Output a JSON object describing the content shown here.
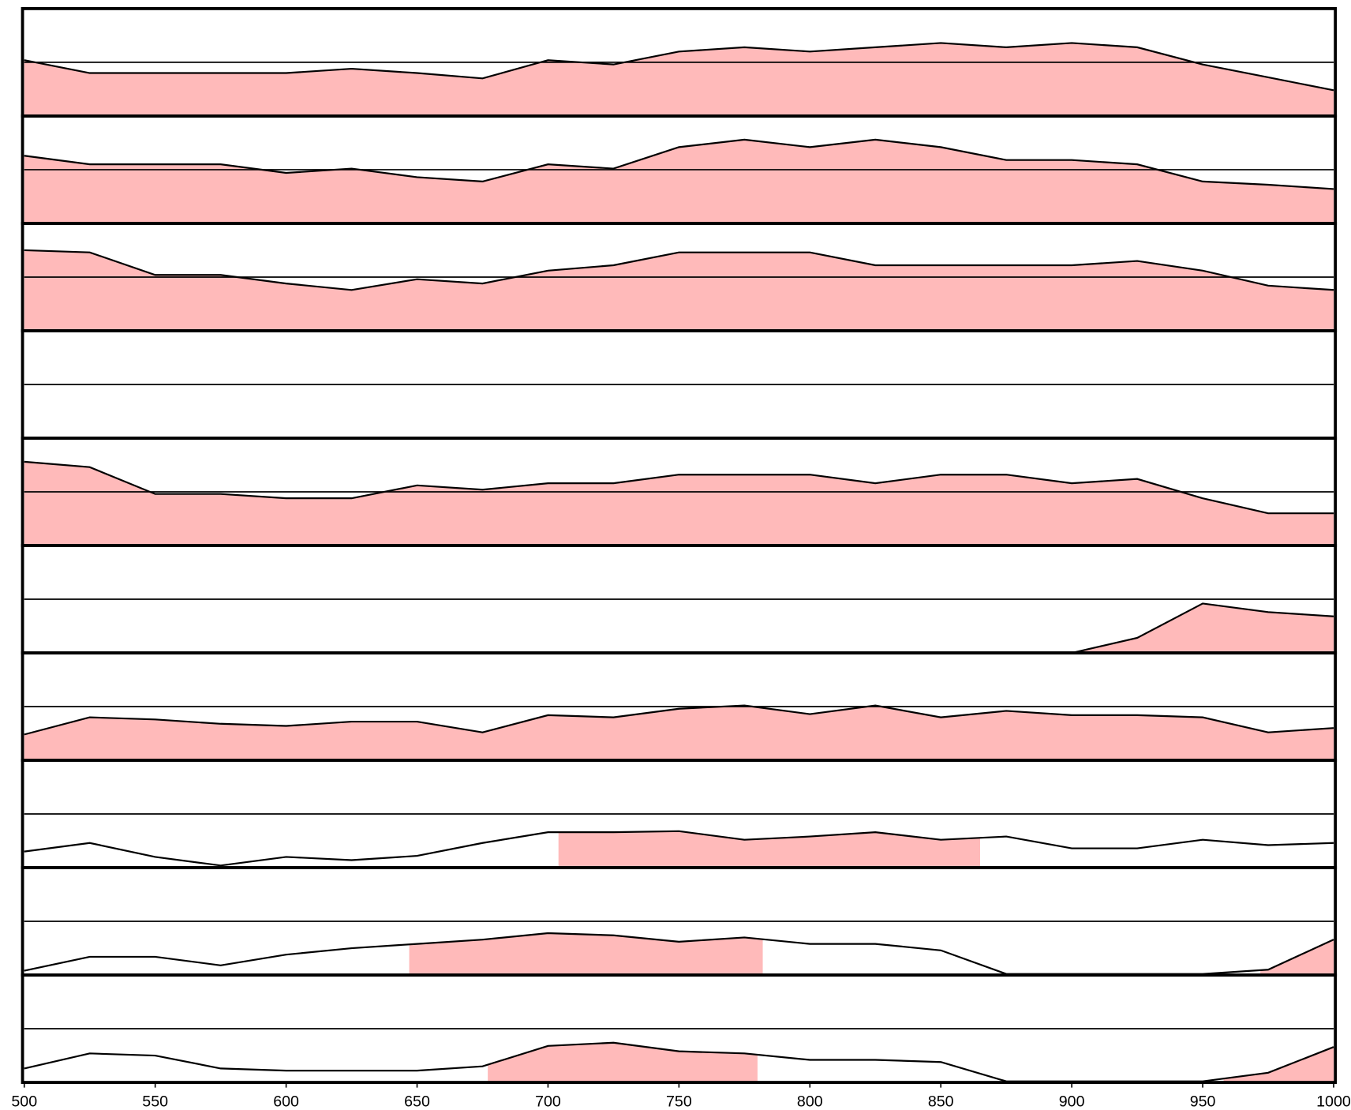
{
  "chart_data": {
    "type": "area",
    "color": "#ffbaba",
    "line_color": "#000000",
    "x": [
      500,
      525,
      550,
      575,
      600,
      625,
      650,
      675,
      700,
      725,
      750,
      775,
      800,
      825,
      850,
      875,
      900,
      925,
      950,
      975,
      1000
    ],
    "xlim": [
      500,
      1000
    ],
    "xticks": [
      500,
      550,
      600,
      650,
      700,
      750,
      800,
      850,
      900,
      950,
      1000
    ],
    "ylim": [
      0,
      1
    ],
    "reference_line": 0.5,
    "panels": [
      {
        "values": [
          0.52,
          0.4,
          0.4,
          0.4,
          0.4,
          0.44,
          0.4,
          0.35,
          0.52,
          0.48,
          0.6,
          0.64,
          0.6,
          0.64,
          0.68,
          0.64,
          0.68,
          0.64,
          0.48,
          0.36,
          0.24
        ],
        "fills": [
          [
            500,
            1000
          ]
        ]
      },
      {
        "values": [
          0.63,
          0.55,
          0.55,
          0.55,
          0.47,
          0.51,
          0.43,
          0.39,
          0.55,
          0.51,
          0.71,
          0.78,
          0.71,
          0.78,
          0.71,
          0.59,
          0.59,
          0.55,
          0.39,
          0.36,
          0.32
        ],
        "fills": [
          [
            500,
            1000
          ]
        ]
      },
      {
        "values": [
          0.75,
          0.73,
          0.52,
          0.52,
          0.44,
          0.38,
          0.48,
          0.44,
          0.56,
          0.61,
          0.73,
          0.73,
          0.73,
          0.61,
          0.61,
          0.61,
          0.61,
          0.65,
          0.56,
          0.42,
          0.38
        ],
        "fills": [
          [
            500,
            1000
          ]
        ]
      },
      {
        "values": [
          0,
          0,
          0,
          0,
          0,
          0,
          0,
          0,
          0,
          0,
          0,
          0,
          0,
          0,
          0,
          0,
          0,
          0,
          0,
          0,
          0
        ],
        "fills": []
      },
      {
        "values": [
          0.78,
          0.73,
          0.48,
          0.48,
          0.44,
          0.44,
          0.56,
          0.52,
          0.58,
          0.58,
          0.66,
          0.66,
          0.66,
          0.58,
          0.66,
          0.66,
          0.58,
          0.62,
          0.44,
          0.3,
          0.3
        ],
        "fills": [
          [
            500,
            1000
          ]
        ]
      },
      {
        "values": [
          0,
          0,
          0,
          0,
          0,
          0,
          0,
          0,
          0,
          0,
          0,
          0,
          0,
          0,
          0,
          0,
          0,
          0.14,
          0.46,
          0.38,
          0.34
        ],
        "fills": [
          [
            896,
            1000
          ]
        ]
      },
      {
        "values": [
          0.24,
          0.4,
          0.38,
          0.34,
          0.32,
          0.36,
          0.36,
          0.26,
          0.42,
          0.4,
          0.48,
          0.51,
          0.43,
          0.51,
          0.4,
          0.46,
          0.42,
          0.42,
          0.4,
          0.26,
          0.3
        ],
        "fills": [
          [
            500,
            1000
          ]
        ]
      },
      {
        "values": [
          0.15,
          0.23,
          0.1,
          0.02,
          0.1,
          0.07,
          0.11,
          0.23,
          0.33,
          0.33,
          0.34,
          0.26,
          0.29,
          0.33,
          0.26,
          0.29,
          0.18,
          0.18,
          0.26,
          0.21,
          0.23
        ],
        "fills": [
          [
            704,
            865
          ]
        ]
      },
      {
        "values": [
          0.04,
          0.17,
          0.17,
          0.09,
          0.19,
          0.25,
          0.29,
          0.33,
          0.39,
          0.37,
          0.31,
          0.35,
          0.29,
          0.29,
          0.23,
          0.01,
          0.01,
          0.01,
          0.01,
          0.05,
          0.33
        ],
        "fills": [
          [
            647,
            782
          ],
          [
            972,
            1000
          ]
        ]
      },
      {
        "values": [
          0.13,
          0.27,
          0.25,
          0.13,
          0.11,
          0.11,
          0.11,
          0.15,
          0.34,
          0.37,
          0.29,
          0.27,
          0.21,
          0.21,
          0.19,
          0.01,
          0.01,
          0.01,
          0.01,
          0.09,
          0.33
        ],
        "fills": [
          [
            677,
            780
          ],
          [
            958,
            1000
          ]
        ]
      }
    ]
  }
}
